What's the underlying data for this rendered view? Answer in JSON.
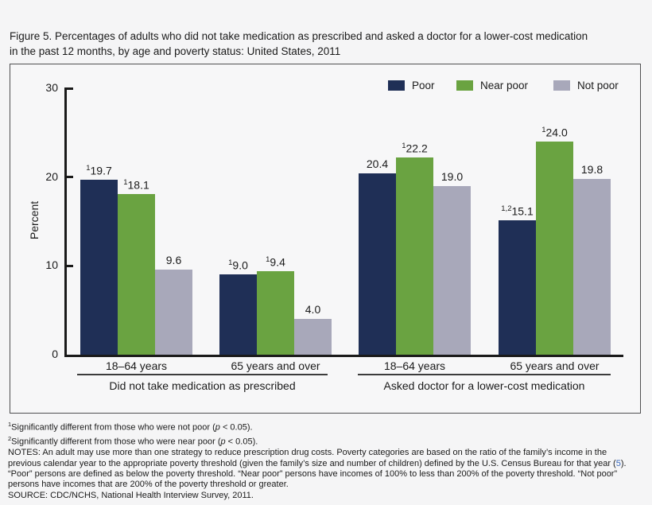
{
  "title": {
    "line1": "Figure 5. Percentages of adults who did not take medication as prescribed and asked a doctor for a lower-cost medication",
    "line2": "in the past 12 months, by age and poverty status: United States, 2011"
  },
  "colors": {
    "poor": "#1f2f56",
    "near_poor": "#6aa341",
    "not_poor": "#a8a8ba",
    "axis": "#1a1a1a",
    "link": "#3a6abf",
    "background": "#f5f5f6",
    "panel_border": "#4f4f51"
  },
  "chart_data": {
    "type": "bar",
    "title": "",
    "xlabel": "",
    "ylabel": "Percent",
    "ylim": [
      0,
      30
    ],
    "yticks": [
      0,
      10,
      20,
      30
    ],
    "grid": false,
    "legend_position": "top-right",
    "series": [
      {
        "name": "Poor",
        "color": "#1f2f56"
      },
      {
        "name": "Near poor",
        "color": "#6aa341"
      },
      {
        "name": "Not poor",
        "color": "#a8a8ba"
      }
    ],
    "sections": [
      {
        "label": "Did not take medication as prescribed",
        "groups": [
          {
            "label": "18–64 years",
            "bars": [
              {
                "series": "Poor",
                "sup": "1",
                "value": 19.7,
                "display": "19.7"
              },
              {
                "series": "Near poor",
                "sup": "1",
                "value": 18.1,
                "display": "18.1"
              },
              {
                "series": "Not poor",
                "sup": "",
                "value": 9.6,
                "display": "9.6"
              }
            ]
          },
          {
            "label": "65 years and over",
            "bars": [
              {
                "series": "Poor",
                "sup": "1",
                "value": 9.0,
                "display": "9.0"
              },
              {
                "series": "Near poor",
                "sup": "1",
                "value": 9.4,
                "display": "9.4"
              },
              {
                "series": "Not poor",
                "sup": "",
                "value": 4.0,
                "display": "4.0"
              }
            ]
          }
        ]
      },
      {
        "label": "Asked doctor for a lower-cost medication",
        "groups": [
          {
            "label": "18–64 years",
            "bars": [
              {
                "series": "Poor",
                "sup": "",
                "value": 20.4,
                "display": "20.4"
              },
              {
                "series": "Near poor",
                "sup": "1",
                "value": 22.2,
                "display": "22.2"
              },
              {
                "series": "Not poor",
                "sup": "",
                "value": 19.0,
                "display": "19.0"
              }
            ]
          },
          {
            "label": "65 years and over",
            "bars": [
              {
                "series": "Poor",
                "sup": "1,2",
                "value": 15.1,
                "display": "15.1"
              },
              {
                "series": "Near poor",
                "sup": "1",
                "value": 24.0,
                "display": "24.0"
              },
              {
                "series": "Not poor",
                "sup": "",
                "value": 19.8,
                "display": "19.8"
              }
            ]
          }
        ]
      }
    ]
  },
  "footnotes": {
    "lines": [
      [
        {
          "t": "1",
          "s": "sup"
        },
        {
          "t": "Significantly different from those who were not poor (",
          "s": ""
        },
        {
          "t": "p",
          "s": "i"
        },
        {
          "t": " < 0.05).",
          "s": ""
        }
      ],
      [
        {
          "t": "2",
          "s": "sup"
        },
        {
          "t": "Significantly different from those who were near poor (",
          "s": ""
        },
        {
          "t": "p",
          "s": "i"
        },
        {
          "t": " < 0.05).",
          "s": ""
        }
      ],
      [
        {
          "t": "NOTES: An adult may use more than one strategy to reduce prescription drug costs. Poverty categories are based on the ratio of the family’s income in the",
          "s": ""
        }
      ],
      [
        {
          "t": "previous calendar year to the appropriate poverty threshold (given the family’s size and number of children) defined by the U.S. Census Bureau for that year (",
          "s": ""
        },
        {
          "t": "5",
          "s": "link"
        },
        {
          "t": ").",
          "s": ""
        }
      ],
      [
        {
          "t": "“Poor” persons are defined as below the poverty threshold. “Near poor” persons have incomes of 100% to less than 200% of the poverty threshold. “Not poor”",
          "s": ""
        }
      ],
      [
        {
          "t": "persons have incomes that are 200% of the poverty threshold or greater.",
          "s": ""
        }
      ],
      [
        {
          "t": "SOURCE: CDC/NCHS, National Health Interview Survey, 2011.",
          "s": ""
        }
      ]
    ]
  }
}
